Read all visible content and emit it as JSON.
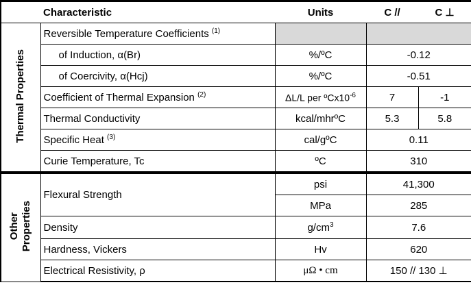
{
  "header": {
    "characteristic": "Characteristic",
    "units": "Units",
    "c_parallel": "C //",
    "c_perp": "C ⊥"
  },
  "groups": [
    {
      "label_lines": [
        "Thermal Properties"
      ],
      "rows": [
        {
          "characteristic": "Reversible Temperature Coefficients",
          "note": "(1)"
        },
        {
          "characteristic": "of Induction, α(Br)",
          "units": "%/ºC",
          "value": "-0.12"
        },
        {
          "characteristic": "of Coercivity, α(Hcj)",
          "units": "%/ºC",
          "value": "-0.51"
        },
        {
          "characteristic": "Coefficient of Thermal Expansion",
          "note": "(2)",
          "units": "ΔL/L per ºCx10",
          "units_sup": "-6",
          "c_parallel": "7",
          "c_perp": "-1"
        },
        {
          "characteristic": "Thermal Conductivity",
          "units": "kcal/mhrºC",
          "c_parallel": "5.3",
          "c_perp": "5.8"
        },
        {
          "characteristic": "Specific Heat",
          "note": "(3)",
          "units": "cal/gºC",
          "value": "0.11"
        },
        {
          "characteristic": "Curie Temperature, Tc",
          "units": "ºC",
          "value": "310"
        }
      ]
    },
    {
      "label_lines": [
        "Other",
        "Properties"
      ],
      "rows": [
        {
          "characteristic": "Flexural Strength",
          "units": [
            "psi",
            "MPa"
          ],
          "values": [
            "41,300",
            "285"
          ]
        },
        {
          "characteristic": "Density",
          "units": "g/cm",
          "units_sup": "3",
          "value": "7.6"
        },
        {
          "characteristic": "Hardness, Vickers",
          "units": "Hv",
          "value": "620"
        },
        {
          "characteristic": "Electrical Resistivity, ρ",
          "units": "μΩ • cm",
          "value": "150 // 130 ⊥"
        }
      ]
    }
  ]
}
